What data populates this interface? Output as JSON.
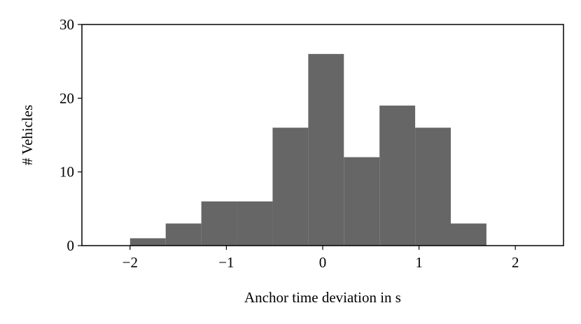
{
  "chart_data": {
    "type": "histogram",
    "xlabel": "Anchor time deviation in s",
    "ylabel": "# Vehicles",
    "bins": [
      -2,
      -1.63,
      -1.26,
      -0.89,
      -0.52,
      -0.15,
      0.22,
      0.59,
      0.96,
      1.33,
      1.7
    ],
    "values": [
      1,
      3,
      6,
      6,
      16,
      26,
      12,
      19,
      16,
      3
    ],
    "color": "#666666",
    "xlim": [
      -2.5,
      2.5
    ],
    "xticks": [
      {
        "value": -2,
        "label": "−2"
      },
      {
        "value": -1,
        "label": "−1"
      },
      0,
      1,
      2
    ],
    "ylim": [
      0,
      30
    ],
    "yticks": [
      0,
      10,
      20,
      30
    ]
  }
}
